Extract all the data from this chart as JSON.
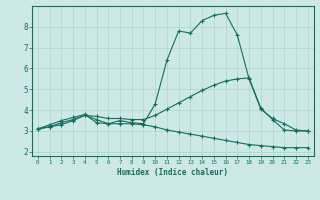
{
  "xlabel": "Humidex (Indice chaleur)",
  "bg_color": "#cce9e5",
  "grid_color": "#add4cf",
  "line_color": "#1a6b5e",
  "xlim": [
    -0.5,
    23.5
  ],
  "ylim": [
    1.8,
    9.0
  ],
  "xticks": [
    0,
    1,
    2,
    3,
    4,
    5,
    6,
    7,
    8,
    9,
    10,
    11,
    12,
    13,
    14,
    15,
    16,
    17,
    18,
    19,
    20,
    21,
    22,
    23
  ],
  "yticks": [
    2,
    3,
    4,
    5,
    6,
    7,
    8
  ],
  "line1_x": [
    0,
    1,
    2,
    3,
    4,
    5,
    6,
    7,
    8,
    9,
    10,
    11,
    12,
    13,
    14,
    15,
    16,
    17,
    18,
    19,
    20,
    21,
    22,
    23
  ],
  "line1_y": [
    3.1,
    3.3,
    3.5,
    3.65,
    3.8,
    3.4,
    3.35,
    3.5,
    3.4,
    3.35,
    4.3,
    6.4,
    7.8,
    7.7,
    8.3,
    8.55,
    8.65,
    7.6,
    5.5,
    4.05,
    3.6,
    3.35,
    3.05,
    3.0
  ],
  "line2_x": [
    0,
    1,
    2,
    3,
    4,
    5,
    6,
    7,
    8,
    9,
    10,
    11,
    12,
    13,
    14,
    15,
    16,
    17,
    18,
    19,
    20,
    21,
    22,
    23
  ],
  "line2_y": [
    3.1,
    3.2,
    3.4,
    3.55,
    3.75,
    3.7,
    3.6,
    3.6,
    3.55,
    3.55,
    3.75,
    4.05,
    4.35,
    4.65,
    4.95,
    5.2,
    5.4,
    5.5,
    5.55,
    4.1,
    3.55,
    3.05,
    3.0,
    3.0
  ],
  "line3_x": [
    0,
    1,
    2,
    3,
    4,
    5,
    6,
    7,
    8,
    9,
    10,
    11,
    12,
    13,
    14,
    15,
    16,
    17,
    18,
    19,
    20,
    21,
    22,
    23
  ],
  "line3_y": [
    3.1,
    3.2,
    3.3,
    3.5,
    3.75,
    3.55,
    3.35,
    3.35,
    3.35,
    3.3,
    3.2,
    3.05,
    2.95,
    2.85,
    2.75,
    2.65,
    2.55,
    2.45,
    2.35,
    2.3,
    2.25,
    2.2,
    2.2,
    2.2
  ]
}
